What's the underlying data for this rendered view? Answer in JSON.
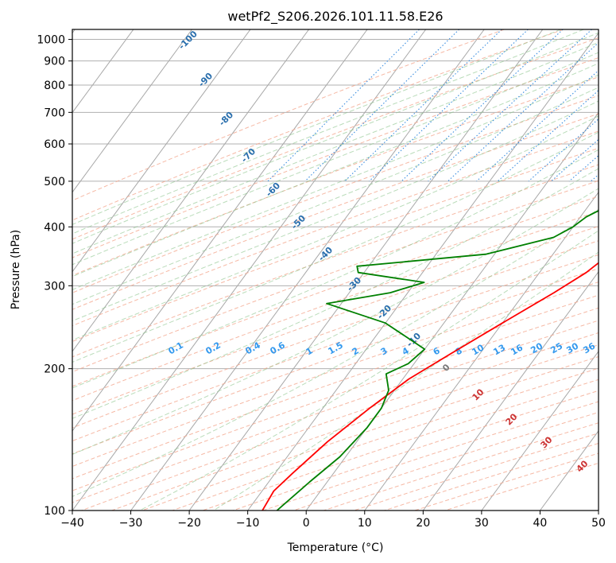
{
  "chart_data": {
    "type": "line",
    "title": "wetPf2_S206.2026.101.11.58.E26",
    "xlabel": "Temperature (°C)",
    "ylabel": "Pressure (hPa)",
    "xlim": [
      -40,
      50
    ],
    "ylim": [
      1050,
      100
    ],
    "y_scale": "log",
    "grid": true,
    "x_ticks": [
      -40,
      -30,
      -20,
      -10,
      0,
      10,
      20,
      30,
      40,
      50
    ],
    "x_tick_labels": [
      "−40",
      "−30",
      "−20",
      "−10",
      "0",
      "10",
      "20",
      "30",
      "40",
      "50"
    ],
    "y_ticks": [
      100,
      200,
      300,
      400,
      500,
      600,
      700,
      800,
      900,
      1000
    ],
    "y_tick_labels": [
      "100",
      "200",
      "300",
      "400",
      "500",
      "600",
      "700",
      "800",
      "900",
      "1000"
    ],
    "series": [
      {
        "name": "Temperature",
        "color": "#ff0000",
        "points": [
          [
            28.8,
            1000
          ],
          [
            27.8,
            985
          ],
          [
            26.3,
            975
          ],
          [
            26.0,
            960
          ],
          [
            25.8,
            900
          ],
          [
            25.5,
            850
          ],
          [
            25.7,
            800
          ],
          [
            26.6,
            775
          ],
          [
            26.0,
            750
          ],
          [
            25.0,
            735
          ],
          [
            24.0,
            700
          ],
          [
            22.8,
            650
          ],
          [
            21.7,
            600
          ],
          [
            21.0,
            570
          ],
          [
            20.5,
            550
          ],
          [
            20.5,
            520
          ],
          [
            20.5,
            500
          ],
          [
            21.0,
            470
          ],
          [
            21.5,
            440
          ],
          [
            20.5,
            410
          ],
          [
            19.7,
            380
          ],
          [
            19.7,
            350
          ],
          [
            18.0,
            320
          ],
          [
            15.0,
            290
          ],
          [
            10.0,
            250
          ],
          [
            5.0,
            215
          ],
          [
            1.0,
            190
          ],
          [
            -2.0,
            165
          ],
          [
            -5.0,
            140
          ],
          [
            -7.0,
            120
          ],
          [
            -8.0,
            110
          ],
          [
            -7.5,
            100
          ]
        ]
      },
      {
        "name": "Dewpoint",
        "color": "#008000",
        "points": [
          [
            24.3,
            1000
          ],
          [
            24.3,
            975
          ],
          [
            24.0,
            950
          ],
          [
            23.0,
            900
          ],
          [
            21.5,
            850
          ],
          [
            19.7,
            800
          ],
          [
            18.5,
            780
          ],
          [
            18.8,
            760
          ],
          [
            19.9,
            740
          ],
          [
            20.0,
            720
          ],
          [
            19.0,
            700
          ],
          [
            18.5,
            650
          ],
          [
            19.6,
            600
          ],
          [
            19.5,
            570
          ],
          [
            17.5,
            540
          ],
          [
            16.7,
            510
          ],
          [
            15.8,
            480
          ],
          [
            14.0,
            450
          ],
          [
            11.0,
            420
          ],
          [
            10.0,
            400
          ],
          [
            8.0,
            380
          ],
          [
            -1.5,
            350
          ],
          [
            -22.0,
            330
          ],
          [
            -21.0,
            320
          ],
          [
            -8.5,
            305
          ],
          [
            -13.0,
            290
          ],
          [
            -22.5,
            275
          ],
          [
            -10.0,
            250
          ],
          [
            0.0,
            220
          ],
          [
            -1.0,
            205
          ],
          [
            -3.5,
            195
          ],
          [
            -1.0,
            180
          ],
          [
            0.0,
            165
          ],
          [
            0.0,
            150
          ],
          [
            -1.0,
            130
          ],
          [
            -3.0,
            115
          ],
          [
            -5.0,
            100
          ]
        ]
      }
    ],
    "dry_adiabat_labels": [
      "-100",
      "-90",
      "-80",
      "-70",
      "-60",
      "-50",
      "-40",
      "-30",
      "-20",
      "-10",
      "0",
      "10",
      "20",
      "30",
      "40"
    ],
    "mixing_ratio_labels": [
      "0.1",
      "0.2",
      "0.4",
      "0.6",
      "1",
      "1.5",
      "2",
      "3",
      "4",
      "6",
      "8",
      "10",
      "13",
      "16",
      "20",
      "25",
      "30",
      "36"
    ]
  }
}
